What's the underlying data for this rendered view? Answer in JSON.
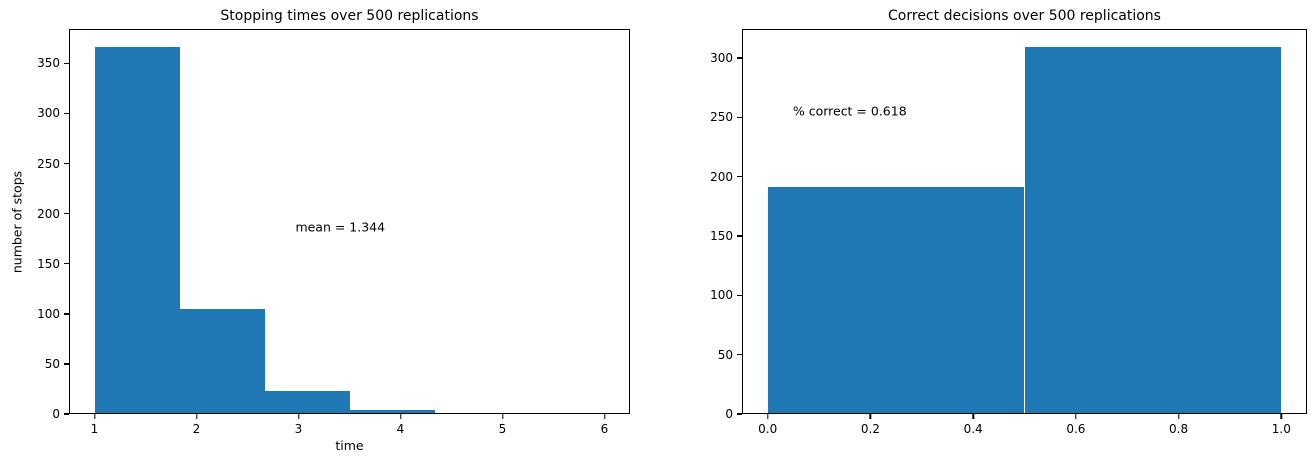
{
  "figure": {
    "background_color": "#ffffff",
    "bar_color": "#1f77b4",
    "axis_color": "#000000",
    "text_color": "#000000"
  },
  "chart_data": [
    {
      "type": "bar",
      "kind": "histogram",
      "title": "Stopping times over 500 replications",
      "xlabel": "time",
      "ylabel": "number of stops",
      "xlim": [
        0.75,
        6.25
      ],
      "ylim": [
        0,
        384.3
      ],
      "grid": false,
      "legend": null,
      "bin_edges": [
        1.0,
        1.8333333,
        2.6666667,
        3.5,
        4.3333333,
        5.1666667,
        6.0
      ],
      "values": [
        366,
        105,
        23,
        4,
        1,
        1
      ],
      "xticks": [
        {
          "v": 1,
          "label": "1"
        },
        {
          "v": 2,
          "label": "2"
        },
        {
          "v": 3,
          "label": "3"
        },
        {
          "v": 4,
          "label": "4"
        },
        {
          "v": 5,
          "label": "5"
        },
        {
          "v": 6,
          "label": "6"
        }
      ],
      "yticks": [
        {
          "v": 0,
          "label": "0"
        },
        {
          "v": 50,
          "label": "50"
        },
        {
          "v": 100,
          "label": "100"
        },
        {
          "v": 150,
          "label": "150"
        },
        {
          "v": 200,
          "label": "200"
        },
        {
          "v": 250,
          "label": "250"
        },
        {
          "v": 300,
          "label": "300"
        },
        {
          "v": 350,
          "label": "350"
        }
      ],
      "annotation": {
        "text": "mean = 1.344",
        "x": 2.97,
        "y": 187
      }
    },
    {
      "type": "bar",
      "kind": "histogram",
      "title": "Correct decisions over 500 replications",
      "xlabel": "",
      "ylabel": "",
      "xlim": [
        -0.05,
        1.05
      ],
      "ylim": [
        0,
        324.45
      ],
      "grid": false,
      "legend": null,
      "bin_edges": [
        0.0,
        0.5,
        1.0
      ],
      "values": [
        191,
        309
      ],
      "xticks": [
        {
          "v": 0.0,
          "label": "0.0"
        },
        {
          "v": 0.2,
          "label": "0.2"
        },
        {
          "v": 0.4,
          "label": "0.4"
        },
        {
          "v": 0.6,
          "label": "0.6"
        },
        {
          "v": 0.8,
          "label": "0.8"
        },
        {
          "v": 1.0,
          "label": "1.0"
        }
      ],
      "yticks": [
        {
          "v": 0,
          "label": "0"
        },
        {
          "v": 50,
          "label": "50"
        },
        {
          "v": 100,
          "label": "100"
        },
        {
          "v": 150,
          "label": "150"
        },
        {
          "v": 200,
          "label": "200"
        },
        {
          "v": 250,
          "label": "250"
        },
        {
          "v": 300,
          "label": "300"
        }
      ],
      "annotation": {
        "text": "% correct = 0.618",
        "x": 0.049,
        "y": 255
      }
    }
  ]
}
